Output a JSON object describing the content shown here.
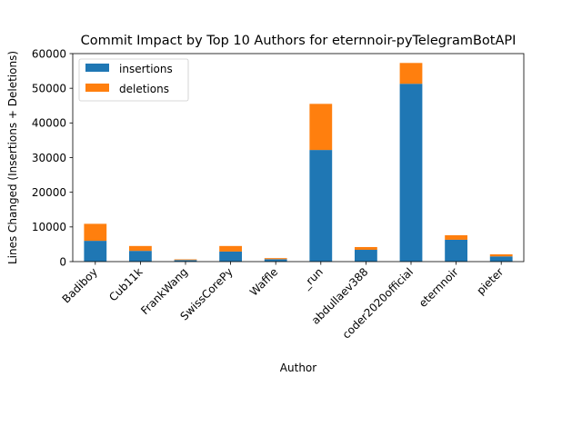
{
  "chart_data": {
    "type": "bar",
    "stacked": true,
    "title": "Commit Impact by Top 10 Authors for eternnoir-pyTelegramBotAPI",
    "xlabel": "Author",
    "ylabel": "Lines Changed (Insertions + Deletions)",
    "ylim": [
      0,
      60000
    ],
    "yticks": [
      0,
      10000,
      20000,
      30000,
      40000,
      50000,
      60000
    ],
    "grid": false,
    "legend_position": "top-left",
    "categories": [
      "Badiboy",
      "Cub11k",
      "FrankWang",
      "SwissCorePy",
      "Waffle",
      "_run",
      "abdullaev388",
      "coder2020official",
      "eternnoir",
      "pieter"
    ],
    "series": [
      {
        "name": "insertions",
        "color": "#1f77b4",
        "values": [
          6000,
          3100,
          450,
          2900,
          700,
          32200,
          3400,
          51300,
          6300,
          1500
        ]
      },
      {
        "name": "deletions",
        "color": "#ff7f0e",
        "values": [
          4900,
          1400,
          200,
          1600,
          300,
          13300,
          800,
          6000,
          1300,
          600
        ]
      }
    ]
  }
}
